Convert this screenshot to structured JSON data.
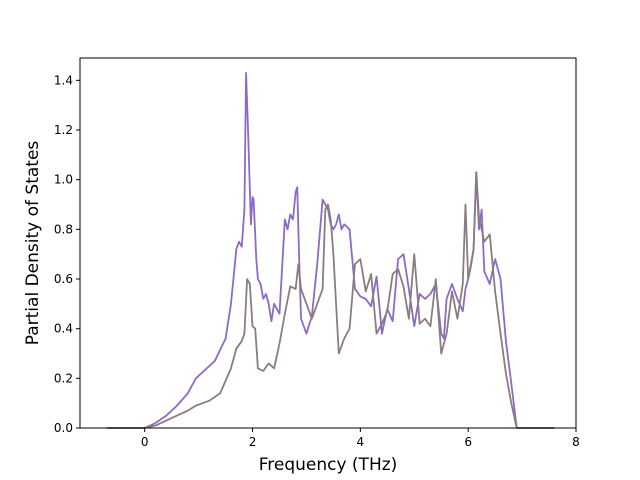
{
  "chart_data": {
    "type": "line",
    "xlabel": "Frequency (THz)",
    "ylabel": "Partial Density of States",
    "xlim": [
      -1.2,
      8
    ],
    "ylim": [
      0,
      1.49
    ],
    "xticks": [
      "0",
      "2",
      "4",
      "6",
      "8"
    ],
    "yticks": [
      "0.0",
      "0.2",
      "0.4",
      "0.6",
      "0.8",
      "1.0",
      "1.2",
      "1.4"
    ],
    "grid": false,
    "series": [
      {
        "color": "#8c6bc8",
        "x": [
          -0.7,
          0.0,
          0.2,
          0.4,
          0.6,
          0.8,
          0.95,
          1.1,
          1.3,
          1.5,
          1.6,
          1.7,
          1.75,
          1.8,
          1.85,
          1.88,
          1.92,
          1.97,
          2.0,
          2.02,
          2.07,
          2.1,
          2.15,
          2.2,
          2.25,
          2.3,
          2.35,
          2.4,
          2.5,
          2.6,
          2.65,
          2.7,
          2.75,
          2.8,
          2.83,
          2.86,
          2.9,
          3.0,
          3.1,
          3.2,
          3.3,
          3.35,
          3.4,
          3.45,
          3.5,
          3.55,
          3.6,
          3.65,
          3.7,
          3.8,
          3.9,
          4.0,
          4.1,
          4.2,
          4.3,
          4.35,
          4.4,
          4.5,
          4.6,
          4.7,
          4.8,
          4.9,
          5.0,
          5.1,
          5.2,
          5.3,
          5.4,
          5.5,
          5.55,
          5.6,
          5.7,
          5.8,
          5.9,
          5.95,
          6.0,
          6.05,
          6.1,
          6.15,
          6.2,
          6.25,
          6.3,
          6.4,
          6.5,
          6.6,
          6.7,
          6.8,
          6.9,
          7.6
        ],
        "values": [
          0.0,
          0.0,
          0.02,
          0.05,
          0.09,
          0.14,
          0.2,
          0.23,
          0.27,
          0.36,
          0.5,
          0.72,
          0.75,
          0.73,
          0.88,
          1.43,
          1.18,
          0.82,
          0.93,
          0.92,
          0.68,
          0.6,
          0.58,
          0.52,
          0.54,
          0.5,
          0.43,
          0.5,
          0.46,
          0.84,
          0.8,
          0.86,
          0.84,
          0.95,
          0.97,
          0.72,
          0.44,
          0.38,
          0.45,
          0.66,
          0.92,
          0.9,
          0.88,
          0.82,
          0.8,
          0.82,
          0.86,
          0.8,
          0.82,
          0.8,
          0.56,
          0.53,
          0.52,
          0.49,
          0.61,
          0.5,
          0.38,
          0.48,
          0.43,
          0.68,
          0.7,
          0.56,
          0.41,
          0.54,
          0.52,
          0.54,
          0.58,
          0.38,
          0.36,
          0.52,
          0.58,
          0.52,
          0.47,
          0.56,
          0.6,
          0.66,
          0.72,
          1.03,
          0.8,
          0.88,
          0.63,
          0.58,
          0.68,
          0.6,
          0.35,
          0.18,
          0.0,
          0.0
        ]
      },
      {
        "color": "#8a7c7f",
        "x": [
          -0.7,
          0.0,
          0.2,
          0.4,
          0.6,
          0.8,
          0.95,
          1.2,
          1.4,
          1.6,
          1.7,
          1.8,
          1.85,
          1.9,
          1.95,
          2.0,
          2.05,
          2.1,
          2.2,
          2.3,
          2.4,
          2.5,
          2.6,
          2.7,
          2.8,
          2.85,
          2.9,
          3.0,
          3.1,
          3.2,
          3.3,
          3.35,
          3.4,
          3.45,
          3.5,
          3.6,
          3.7,
          3.8,
          3.9,
          4.0,
          4.1,
          4.2,
          4.3,
          4.4,
          4.5,
          4.6,
          4.7,
          4.8,
          4.9,
          5.0,
          5.1,
          5.2,
          5.3,
          5.4,
          5.5,
          5.6,
          5.7,
          5.8,
          5.9,
          5.95,
          6.0,
          6.05,
          6.1,
          6.15,
          6.2,
          6.3,
          6.4,
          6.5,
          6.6,
          6.7,
          6.8,
          6.9,
          7.6
        ],
        "values": [
          0.0,
          0.0,
          0.01,
          0.03,
          0.05,
          0.07,
          0.09,
          0.11,
          0.14,
          0.24,
          0.32,
          0.35,
          0.38,
          0.6,
          0.58,
          0.41,
          0.4,
          0.24,
          0.23,
          0.26,
          0.24,
          0.34,
          0.46,
          0.57,
          0.56,
          0.66,
          0.56,
          0.5,
          0.44,
          0.5,
          0.56,
          0.88,
          0.9,
          0.84,
          0.7,
          0.3,
          0.36,
          0.4,
          0.66,
          0.68,
          0.55,
          0.62,
          0.38,
          0.42,
          0.47,
          0.62,
          0.64,
          0.57,
          0.44,
          0.7,
          0.42,
          0.44,
          0.41,
          0.6,
          0.3,
          0.38,
          0.55,
          0.44,
          0.58,
          0.9,
          0.6,
          0.65,
          0.72,
          1.03,
          0.85,
          0.75,
          0.78,
          0.55,
          0.38,
          0.22,
          0.1,
          0.0,
          0.0
        ]
      }
    ]
  }
}
